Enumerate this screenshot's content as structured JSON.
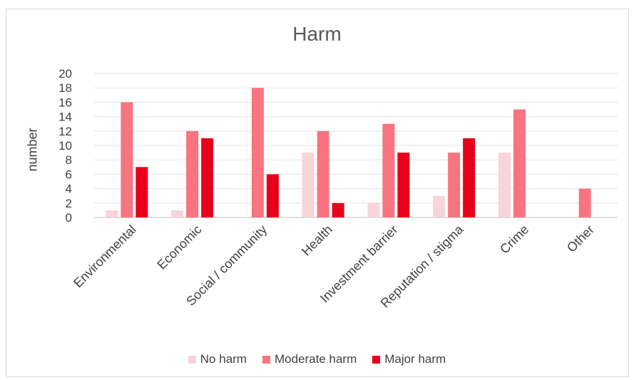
{
  "chart_data": {
    "type": "bar",
    "title": "Harm",
    "ylabel": "number",
    "xlabel": "",
    "ylim": [
      0,
      20
    ],
    "yticks": [
      0,
      2,
      4,
      6,
      8,
      10,
      12,
      14,
      16,
      18,
      20
    ],
    "grid": true,
    "legend_position": "bottom",
    "categories": [
      "Environmental",
      "Economic",
      "Social / community",
      "Health",
      "Investment barrier",
      "Reputation / stigma",
      "Crime",
      "Other"
    ],
    "series": [
      {
        "name": "No harm",
        "color": "#f9d4da",
        "values": [
          1,
          1,
          0,
          9,
          2,
          3,
          9,
          0
        ]
      },
      {
        "name": "Moderate harm",
        "color": "#f87480",
        "values": [
          16,
          12,
          18,
          12,
          13,
          9,
          15,
          4
        ]
      },
      {
        "name": "Major harm",
        "color": "#e8001a",
        "values": [
          7,
          11,
          6,
          2,
          9,
          11,
          0,
          0
        ]
      }
    ]
  }
}
